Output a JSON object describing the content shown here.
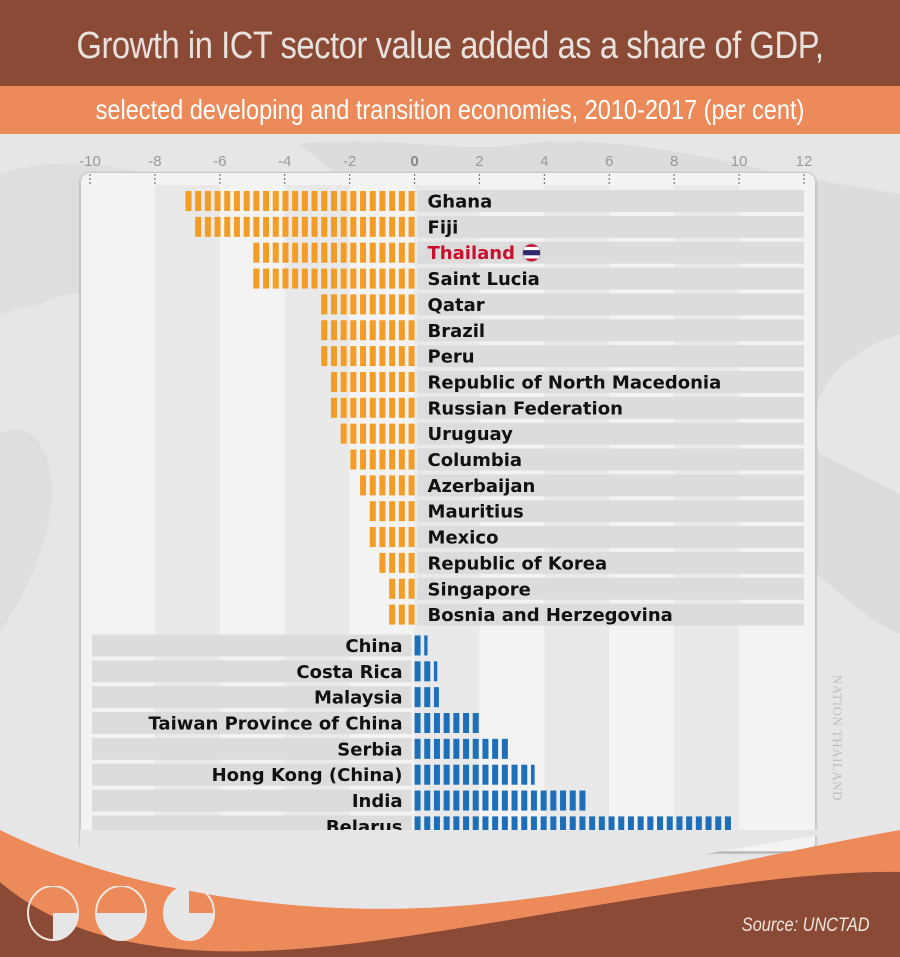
{
  "header": {
    "title": "Growth in ICT sector value added as a share of GDP,",
    "subtitle": "selected developing and transition economies, 2010-2017 (per cent)"
  },
  "source": "Source: UNCTAD",
  "watermark": "NATION THAILAND",
  "colors": {
    "title_band": "#8b4a36",
    "subtitle_band": "#ec8a5a",
    "negative_bar": "#f39c26",
    "positive_bar": "#1c6fb8",
    "highlight_label": "#c8102e"
  },
  "chart_data": {
    "type": "bar",
    "orientation": "horizontal",
    "title": "Growth in ICT sector value added as a share of GDP, selected developing and transition economies, 2010-2017 (per cent)",
    "xlabel": "",
    "ylabel": "",
    "xlim": [
      -10,
      12
    ],
    "xticks": [
      -10,
      -8,
      -6,
      -4,
      -2,
      0,
      2,
      4,
      6,
      8,
      10,
      12
    ],
    "grid": true,
    "highlight": "Thailand",
    "categories": [
      "Ghana",
      "Fiji",
      "Thailand",
      "Saint Lucia",
      "Qatar",
      "Brazil",
      "Peru",
      "Republic of North Macedonia",
      "Russian Federation",
      "Uruguay",
      "Columbia",
      "Azerbaijan",
      "Mauritius",
      "Mexico",
      "Republic of Korea",
      "Singapore",
      "Bosnia and Herzegovina",
      "China",
      "Costa Rica",
      "Malaysia",
      "Taiwan Province of China",
      "Serbia",
      "Hong Kong (China)",
      "India",
      "Belarus"
    ],
    "values": [
      -7.2,
      -6.8,
      -5.1,
      -5.0,
      -3.1,
      -3.1,
      -3.0,
      -2.8,
      -2.6,
      -2.3,
      -2.2,
      -1.7,
      -1.65,
      -1.4,
      -1.3,
      -1.05,
      -0.9,
      0.4,
      0.7,
      0.75,
      2.0,
      2.9,
      3.7,
      5.3,
      9.8
    ]
  }
}
